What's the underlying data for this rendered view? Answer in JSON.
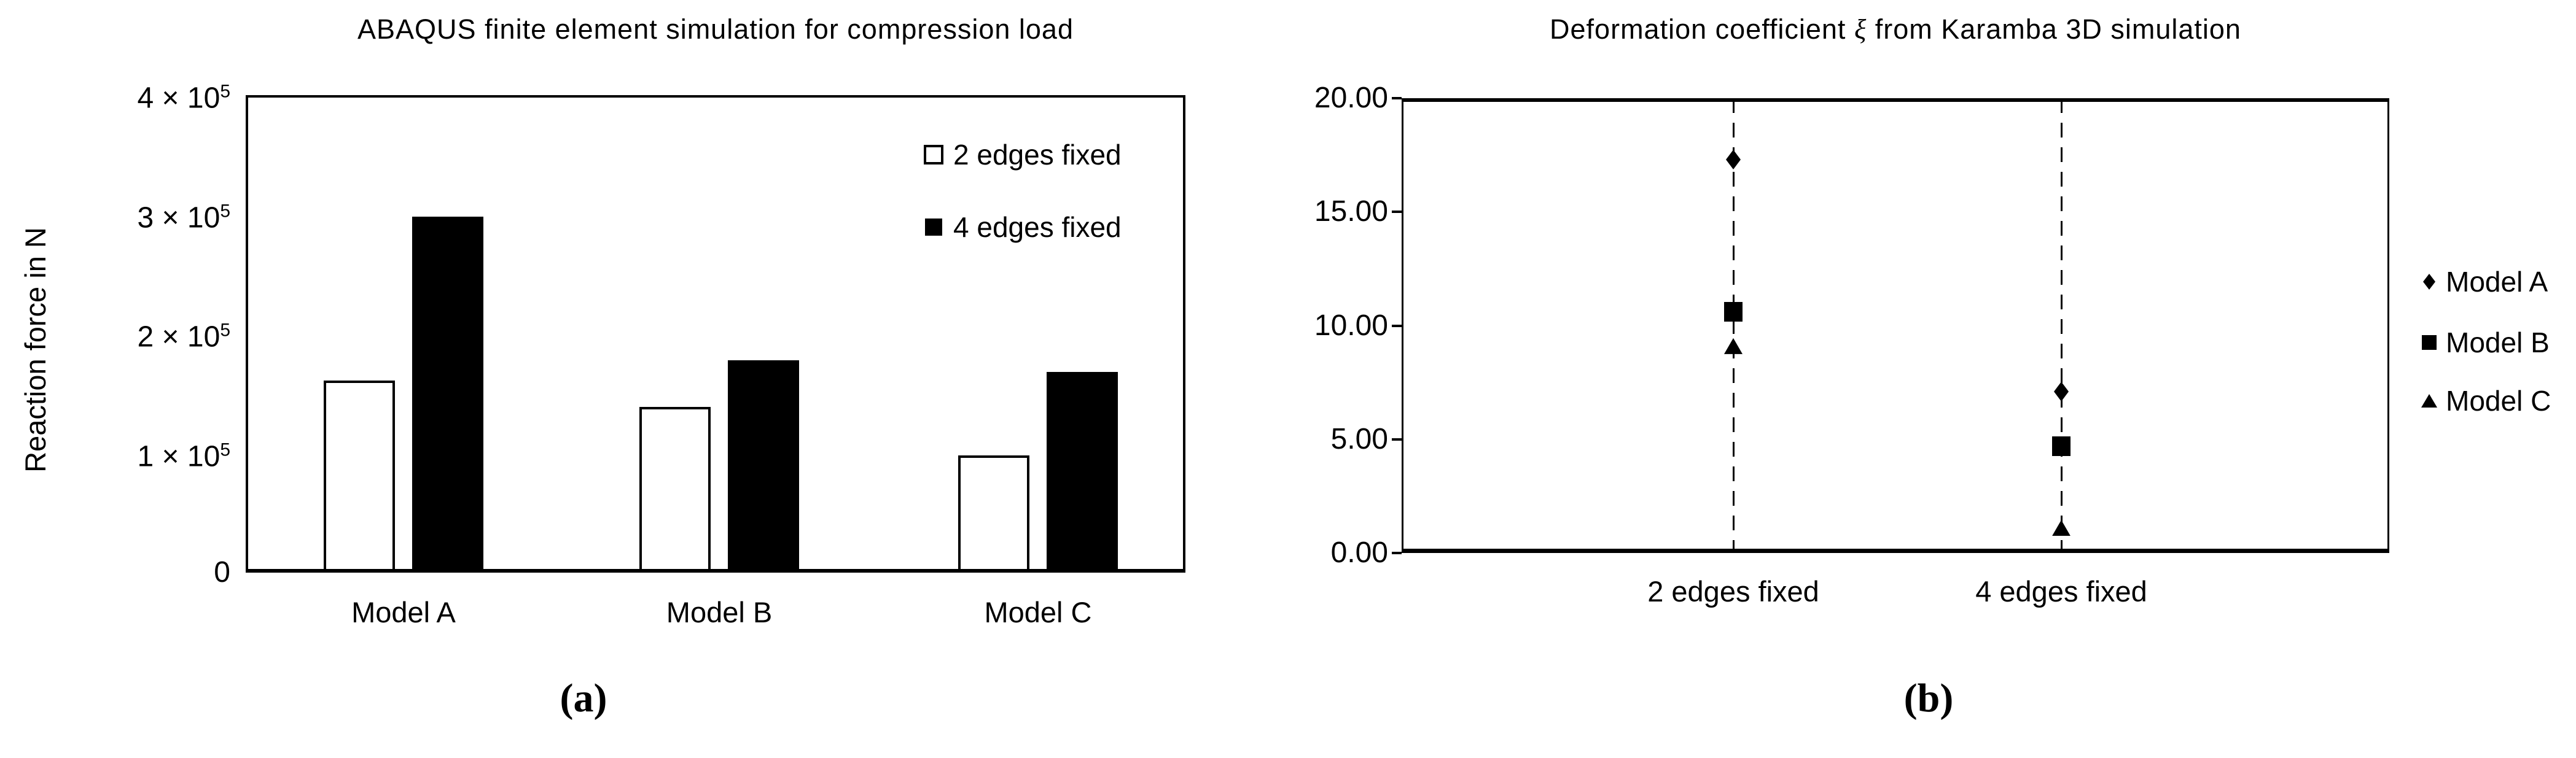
{
  "captions": {
    "a": "(a)",
    "b": "(b)"
  },
  "colors": {
    "foreground": "#000000",
    "background": "#ffffff"
  },
  "chart_data": [
    {
      "panel": "a",
      "type": "bar",
      "title": "ABAQUS finite element simulation for compression load",
      "xlabel": "",
      "ylabel": "Reaction force in N",
      "categories": [
        "Model A",
        "Model B",
        "Model C"
      ],
      "series": [
        {
          "name": "2 edges fixed",
          "fill": "#ffffff",
          "outline": "#000000",
          "values": [
            160000,
            138000,
            97000
          ]
        },
        {
          "name": "4 edges fixed",
          "fill": "#000000",
          "outline": "#000000",
          "values": [
            297000,
            177000,
            167000
          ]
        }
      ],
      "ylim": [
        0,
        400000
      ],
      "yticks": [
        {
          "label": "4 × 10",
          "sup": "5",
          "value": 400000
        },
        {
          "label": "3 × 10",
          "sup": "5",
          "value": 300000
        },
        {
          "label": "2 × 10",
          "sup": "5",
          "value": 200000
        },
        {
          "label": "1 × 10",
          "sup": "5",
          "value": 100000
        },
        {
          "label": "0",
          "sup": "",
          "value": 0
        }
      ],
      "grid": false,
      "legend_position": "top-right-inside"
    },
    {
      "panel": "b",
      "type": "scatter",
      "title_parts": {
        "pre": "Deformation coefficient ",
        "symbol": "ξ",
        "post": " from Karamba 3D simulation"
      },
      "xlabel": "",
      "ylabel": "",
      "categories": [
        "2 edges fixed",
        "4 edges fixed"
      ],
      "series": [
        {
          "name": "Model A",
          "marker": "diamond",
          "color": "#000000",
          "values": [
            17.3,
            7.1
          ]
        },
        {
          "name": "Model B",
          "marker": "square",
          "color": "#000000",
          "values": [
            10.6,
            4.7
          ]
        },
        {
          "name": "Model C",
          "marker": "triangle",
          "color": "#000000",
          "values": [
            9.1,
            1.1
          ]
        }
      ],
      "ylim": [
        0,
        20
      ],
      "yticks": [
        {
          "label": "20.00",
          "value": 20
        },
        {
          "label": "15.00",
          "value": 15
        },
        {
          "label": "10.00",
          "value": 10
        },
        {
          "label": "5.00",
          "value": 5
        },
        {
          "label": "0.00",
          "value": 0
        }
      ],
      "guide_lines": "dashed-vertical-at-categories",
      "grid": false,
      "legend_position": "right-outside"
    }
  ]
}
